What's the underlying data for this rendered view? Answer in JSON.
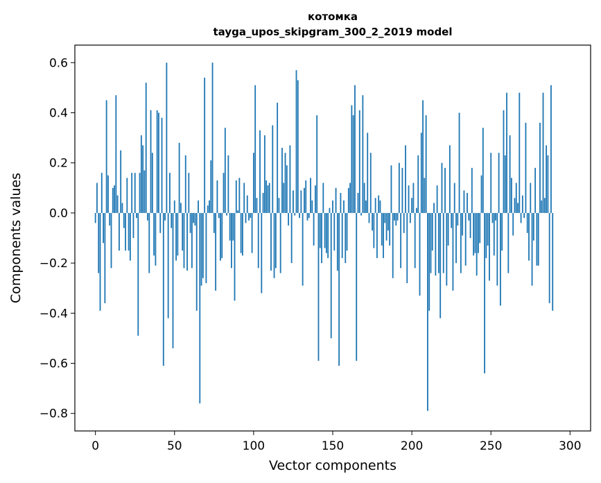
{
  "chart_data": {
    "type": "bar",
    "title_line1": "котомка",
    "title_line2": "tayga_upos_skipgram_300_2_2019 model",
    "xlabel": "Vector components",
    "ylabel": "Components values",
    "xlim": [
      -13,
      313
    ],
    "ylim": [
      -0.87,
      0.67
    ],
    "xticks": [
      0,
      50,
      100,
      150,
      200,
      250,
      300
    ],
    "xtick_labels": [
      "0",
      "50",
      "100",
      "150",
      "200",
      "250",
      "300"
    ],
    "yticks": [
      -0.8,
      -0.6,
      -0.4,
      -0.2,
      0.0,
      0.2,
      0.4,
      0.6
    ],
    "ytick_labels": [
      "−0.8",
      "−0.6",
      "−0.4",
      "−0.2",
      "0.0",
      "0.2",
      "0.4",
      "0.6"
    ],
    "bar_color": "#1f77b4",
    "grid": false,
    "values": [
      -0.04,
      0.12,
      -0.24,
      -0.39,
      0.16,
      -0.12,
      -0.36,
      0.45,
      0.15,
      -0.05,
      -0.22,
      0.1,
      0.11,
      0.47,
      0.07,
      -0.15,
      0.25,
      0.04,
      -0.06,
      -0.15,
      0.14,
      -0.15,
      -0.19,
      0.16,
      -0.1,
      0.16,
      -0.02,
      -0.49,
      0.16,
      0.31,
      0.27,
      0.17,
      0.52,
      -0.03,
      -0.24,
      0.41,
      0.24,
      -0.17,
      -0.21,
      0.41,
      0.4,
      -0.08,
      0.38,
      -0.61,
      -0.03,
      0.6,
      -0.42,
      0.16,
      -0.06,
      -0.54,
      0.05,
      -0.19,
      -0.17,
      0.28,
      0.04,
      -0.15,
      -0.22,
      0.23,
      -0.23,
      0.16,
      -0.08,
      -0.22,
      -0.04,
      -0.05,
      -0.39,
      0.05,
      -0.76,
      -0.29,
      -0.26,
      0.54,
      -0.28,
      0.03,
      0.05,
      0.21,
      0.6,
      -0.08,
      -0.31,
      0.13,
      -0.02,
      -0.19,
      -0.18,
      0.16,
      0.34,
      -0.01,
      0.23,
      -0.11,
      -0.22,
      -0.11,
      -0.35,
      0.13,
      0.01,
      0.14,
      -0.16,
      -0.17,
      0.12,
      -0.04,
      0.07,
      -0.03,
      -0.02,
      -0.16,
      0.24,
      0.51,
      0.06,
      -0.22,
      0.33,
      -0.32,
      0.08,
      0.31,
      0.13,
      0.11,
      0.12,
      -0.23,
      0.35,
      -0.26,
      -0.22,
      0.44,
      0.06,
      -0.24,
      0.26,
      0.12,
      0.24,
      0.19,
      -0.05,
      0.27,
      -0.2,
      0.09,
      -0.01,
      0.57,
      0.53,
      -0.02,
      0.09,
      -0.29,
      0.1,
      0.13,
      -0.03,
      -0.02,
      0.14,
      0.05,
      -0.13,
      0.11,
      0.39,
      -0.59,
      -0.14,
      -0.2,
      0.12,
      -0.14,
      -0.16,
      -0.18,
      0.02,
      -0.5,
      0.05,
      -0.15,
      0.1,
      -0.23,
      -0.61,
      0.08,
      -0.18,
      0.05,
      -0.2,
      -0.15,
      0.1,
      0.12,
      0.43,
      0.39,
      0.51,
      -0.59,
      0.08,
      0.41,
      -0.01,
      0.47,
      0.12,
      0.05,
      0.32,
      -0.04,
      0.24,
      -0.07,
      -0.14,
      0.06,
      -0.18,
      0.07,
      0.05,
      -0.13,
      -0.18,
      -0.04,
      -0.11,
      -0.07,
      -0.13,
      0.19,
      -0.26,
      -0.03,
      -0.05,
      -0.03,
      0.2,
      -0.22,
      0.18,
      -0.08,
      0.27,
      -0.28,
      0.11,
      -0.04,
      0.06,
      0.12,
      -0.22,
      0.02,
      0.23,
      -0.33,
      0.32,
      0.45,
      0.14,
      0.39,
      -0.79,
      -0.39,
      -0.24,
      -0.15,
      0.04,
      -0.25,
      0.11,
      -0.24,
      -0.42,
      0.2,
      -0.24,
      0.18,
      -0.29,
      -0.13,
      0.27,
      -0.06,
      -0.31,
      0.12,
      -0.2,
      -0.05,
      0.4,
      -0.24,
      -0.09,
      0.09,
      -0.21,
      0.08,
      -0.03,
      -0.1,
      0.18,
      -0.17,
      -0.16,
      -0.25,
      -0.16,
      -0.12,
      0.15,
      0.34,
      -0.64,
      -0.18,
      -0.13,
      -0.27,
      0.24,
      -0.04,
      -0.17,
      -0.03,
      -0.29,
      0.24,
      -0.37,
      -0.15,
      0.41,
      0.23,
      0.48,
      -0.24,
      0.31,
      0.14,
      -0.09,
      0.06,
      0.12,
      0.04,
      0.48,
      -0.04,
      0.07,
      -0.02,
      0.36,
      -0.08,
      -0.19,
      0.12,
      -0.29,
      -0.11,
      0.18,
      -0.21,
      -0.21,
      0.36,
      0.05,
      0.48,
      0.06,
      0.27,
      0.23,
      -0.36,
      0.51,
      -0.39
    ]
  }
}
